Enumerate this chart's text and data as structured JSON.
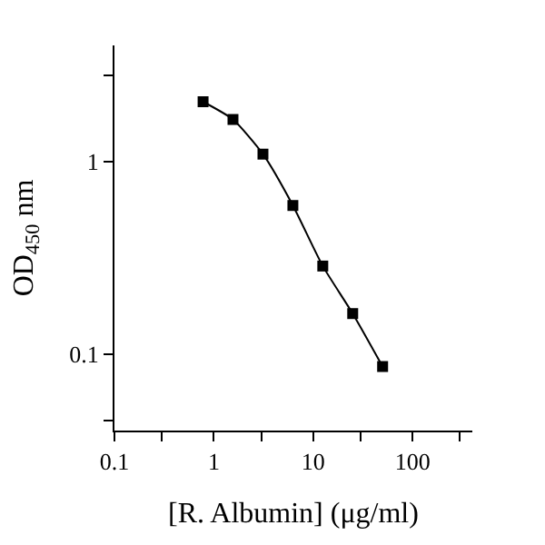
{
  "chart_data": {
    "type": "line",
    "xlabel": "[R. Albumin] (μg/ml)",
    "ylabel": "OD$_{450}$ nm",
    "log": "xy",
    "marker": "square",
    "line_style": "solid",
    "x": [
      0.78,
      1.56,
      3.125,
      6.25,
      12.5,
      25,
      50
    ],
    "series": [
      {
        "color": "#000000",
        "values": [
          2.04,
          1.65,
          1.09,
          0.59,
          0.286,
          0.162,
          0.086
        ]
      }
    ],
    "xlim": [
      0.1,
      400
    ],
    "xticks": [
      0.1,
      {
        "value": 0.3,
        "label": null
      },
      1,
      {
        "value": 3,
        "label": null
      },
      10,
      {
        "value": 30,
        "label": null
      },
      100,
      {
        "value": 300,
        "label": null
      }
    ],
    "ylim": [
      0.04,
      4
    ],
    "yticks": [
      {
        "value": 0.045,
        "label": null
      },
      0.1,
      1,
      {
        "value": 2.8,
        "label": null
      }
    ]
  }
}
